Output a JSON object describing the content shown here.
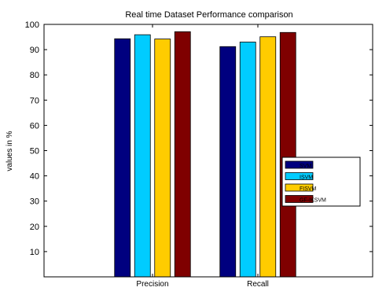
{
  "chart_data": {
    "type": "bar",
    "title": "Real time Dataset Performance comparison",
    "xlabel": "",
    "ylabel": "values in %",
    "categories": [
      "Precision",
      "Recall"
    ],
    "ylim": [
      0,
      100
    ],
    "yticks": [
      10,
      20,
      30,
      40,
      50,
      60,
      70,
      80,
      90,
      100
    ],
    "grid": false,
    "legend_position": "right",
    "series": [
      {
        "name": "SVM",
        "color": "#00007f",
        "values": [
          94.3,
          91.2
        ]
      },
      {
        "name": "ISVM",
        "color": "#00ccff",
        "values": [
          95.9,
          93.0
        ]
      },
      {
        "name": "FISVM",
        "color": "#ffcc00",
        "values": [
          94.2,
          95.1
        ]
      },
      {
        "name": "GF-IKSVM",
        "color": "#7f0000",
        "values": [
          97.1,
          96.8
        ]
      }
    ]
  }
}
